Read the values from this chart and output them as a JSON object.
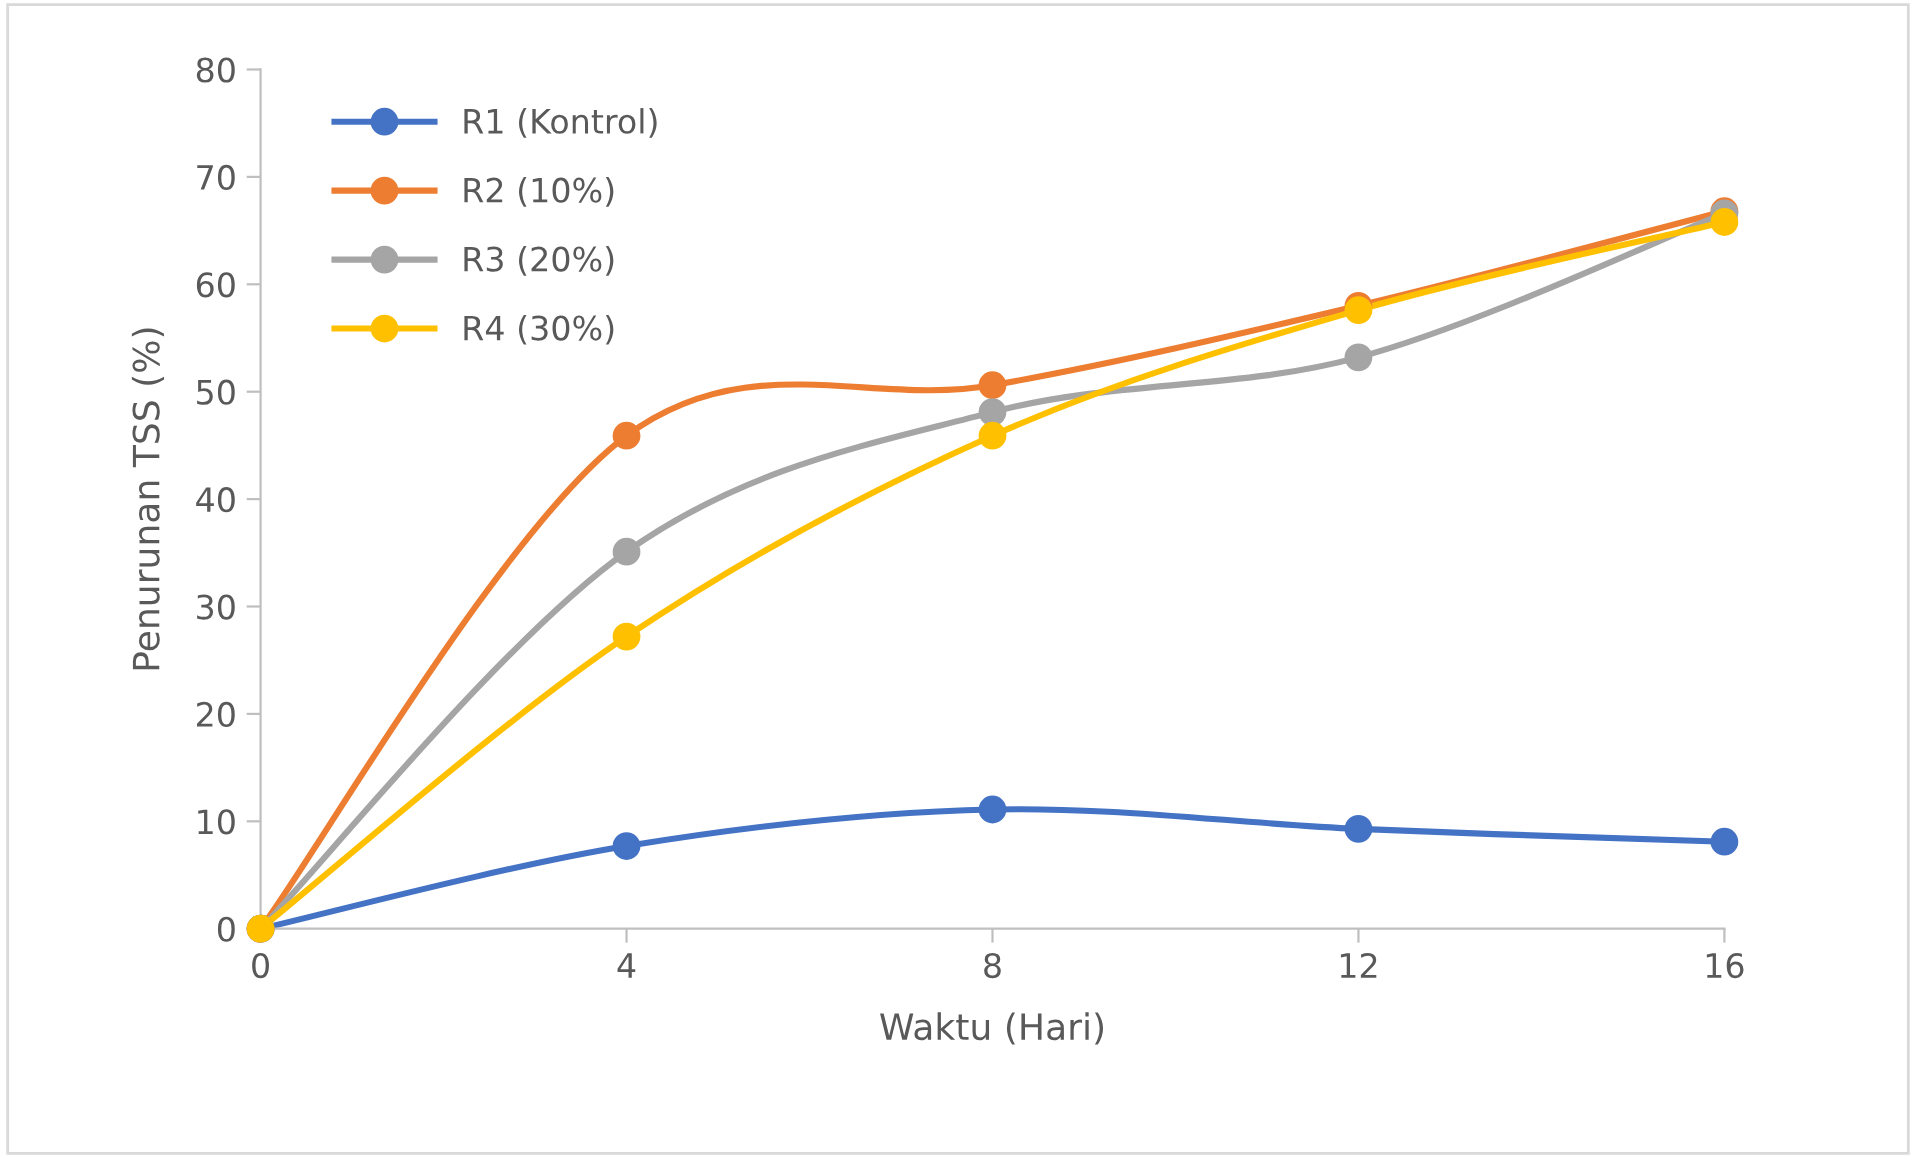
{
  "chart_data": {
    "type": "line",
    "xlabel": "Waktu (Hari)",
    "ylabel": "Penurunan TSS (%)",
    "x": [
      0,
      4,
      8,
      12,
      16
    ],
    "xlim": [
      0,
      16
    ],
    "xticks": [
      0,
      4,
      8,
      12,
      16
    ],
    "ylim": [
      0,
      80
    ],
    "yticks": [
      0,
      10,
      20,
      30,
      40,
      50,
      60,
      70,
      80
    ],
    "grid": false,
    "legend": "top left",
    "marker": "circle",
    "line_style": "solid",
    "series": [
      {
        "name": "R1 (Kontrol)",
        "color": "#4472c4",
        "values": [
          0,
          7.7,
          11.1,
          9.3,
          8.1
        ]
      },
      {
        "name": "R2 (10%)",
        "color": "#ed7d31",
        "values": [
          0,
          45.9,
          50.6,
          58.0,
          66.8
        ]
      },
      {
        "name": "R3 (20%)",
        "color": "#a5a5a5",
        "values": [
          0,
          35.1,
          48.1,
          53.2,
          66.6
        ]
      },
      {
        "name": "R4 (30%)",
        "color": "#ffc000",
        "values": [
          0,
          27.2,
          45.9,
          57.6,
          65.8
        ]
      }
    ]
  }
}
